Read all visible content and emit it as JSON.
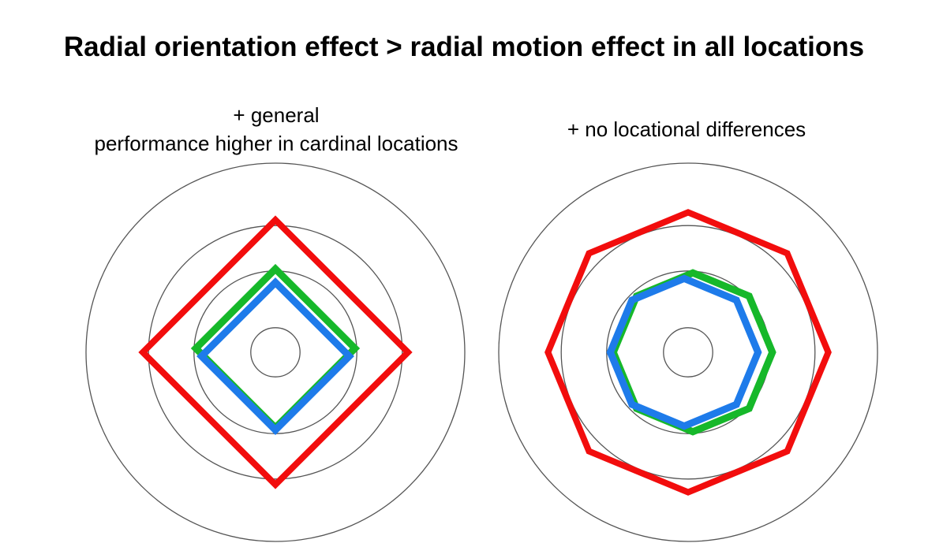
{
  "title": "Radial orientation effect > radial motion effect in all locations",
  "panels": [
    {
      "caption_lines": [
        "+ general",
        "performance higher in cardinal locations"
      ]
    },
    {
      "caption_lines": [
        "+ no locational differences"
      ]
    }
  ],
  "colors": {
    "red": "#f20d0d",
    "green": "#16b82a",
    "blue": "#1e7bea",
    "rings": "#555555"
  },
  "chart_data": [
    {
      "type": "radar",
      "description_of_shape": "diamond: higher values at 4 cardinal angles",
      "angles_deg": [
        0,
        90,
        180,
        270
      ],
      "ring_radii": [
        0.13,
        0.43,
        0.67,
        1.0
      ],
      "series": [
        {
          "color": "red",
          "values": [
            0.7,
            0.7,
            0.7,
            0.7
          ]
        },
        {
          "color": "green",
          "values": [
            0.42,
            0.42,
            0.42,
            0.42
          ]
        },
        {
          "color": "blue",
          "values": [
            0.39,
            0.39,
            0.39,
            0.39
          ]
        }
      ]
    },
    {
      "type": "radar",
      "angles_deg": [
        0,
        45,
        90,
        135,
        180,
        225,
        270,
        315
      ],
      "ring_radii": [
        0.13,
        0.43,
        0.67,
        1.0
      ],
      "series": [
        {
          "color": "red",
          "values": [
            0.74,
            0.74,
            0.74,
            0.74,
            0.74,
            0.74,
            0.74,
            0.74
          ]
        },
        {
          "color": "green",
          "values": [
            0.42,
            0.42,
            0.42,
            0.42,
            0.42,
            0.42,
            0.42,
            0.42
          ]
        },
        {
          "color": "blue",
          "values": [
            0.39,
            0.39,
            0.39,
            0.39,
            0.39,
            0.39,
            0.39,
            0.39
          ]
        }
      ]
    }
  ]
}
